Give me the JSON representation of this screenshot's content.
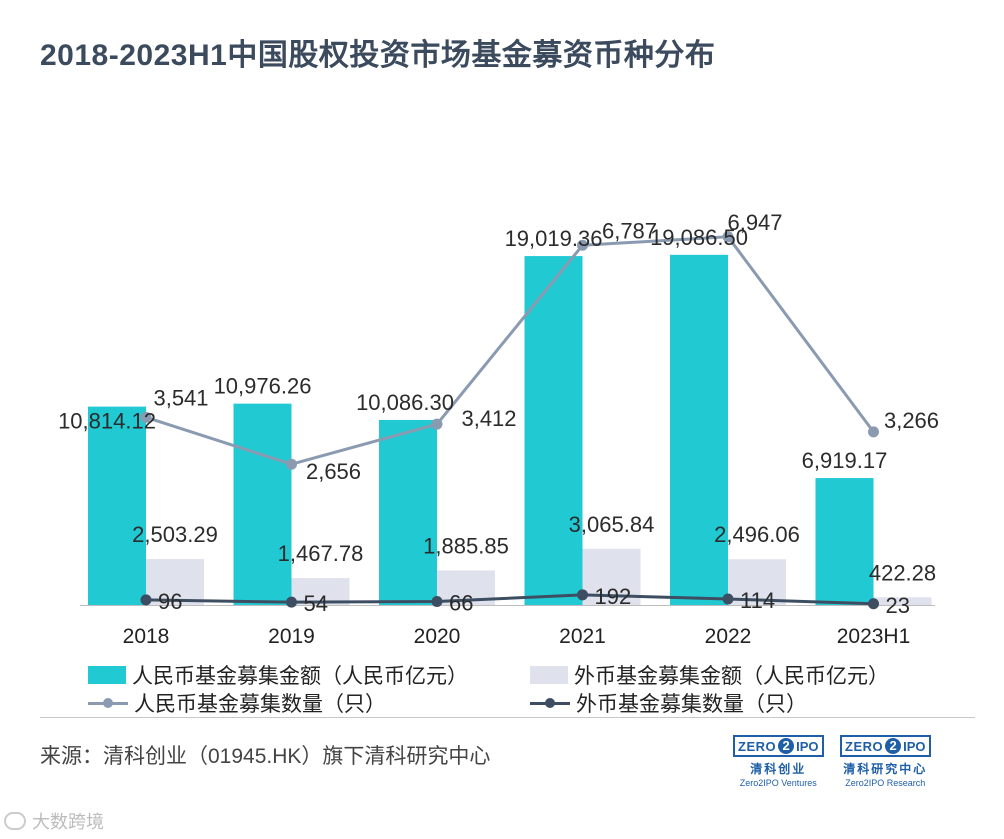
{
  "title": "2018-2023H1中国股权投资市场基金募资币种分布",
  "colors": {
    "rmb_bar": "#21cad3",
    "fx_bar": "#dfe1ec",
    "rmb_line": "#8a9ab0",
    "fx_line": "#3d4e63"
  },
  "chart_data": {
    "type": "bar",
    "categories": [
      "2018",
      "2019",
      "2020",
      "2021",
      "2022",
      "2023H1"
    ],
    "bar_ylim": [
      0,
      26000
    ],
    "line_ylim": [
      0,
      9000
    ],
    "series": [
      {
        "name": "人民币基金募集金额（人民币亿元）",
        "kind": "bar",
        "axis": "left",
        "values": [
          10814.12,
          10976.26,
          10086.3,
          19019.36,
          19086.5,
          6919.17
        ],
        "labels": [
          "10,814.12",
          "10,976.26",
          "10,086.30",
          "19,019.36",
          "19,086.50",
          "6,919.17"
        ]
      },
      {
        "name": "外币基金募集金额（人民币亿元）",
        "kind": "bar",
        "axis": "left",
        "values": [
          2503.29,
          1467.78,
          1885.85,
          3065.84,
          2496.06,
          422.28
        ],
        "labels": [
          "2,503.29",
          "1,467.78",
          "1,885.85",
          "3,065.84",
          "2,496.06",
          "422.28"
        ]
      },
      {
        "name": "人民币基金募集数量（只）",
        "kind": "line",
        "axis": "right",
        "values": [
          3541,
          2656,
          3412,
          6787,
          6947,
          3266
        ],
        "labels": [
          "3,541",
          "2,656",
          "3,412",
          "6,787",
          "6,947",
          "3,266"
        ]
      },
      {
        "name": "外币基金募集数量（只）",
        "kind": "line",
        "axis": "right",
        "values": [
          96,
          54,
          66,
          192,
          114,
          23
        ],
        "labels": [
          "96",
          "54",
          "66",
          "192",
          "114",
          "23"
        ]
      }
    ]
  },
  "source": "来源：清科创业（01945.HK）旗下清科研究中心",
  "logos": [
    {
      "zero": "ZERO",
      "two": "2",
      "ipo": "IPO",
      "cn": "清科创业",
      "en": "Zero2IPO Ventures"
    },
    {
      "zero": "ZERO",
      "two": "2",
      "ipo": "IPO",
      "cn": "清科研究中心",
      "en": "Zero2IPO Research"
    }
  ],
  "watermark": "大数跨境"
}
